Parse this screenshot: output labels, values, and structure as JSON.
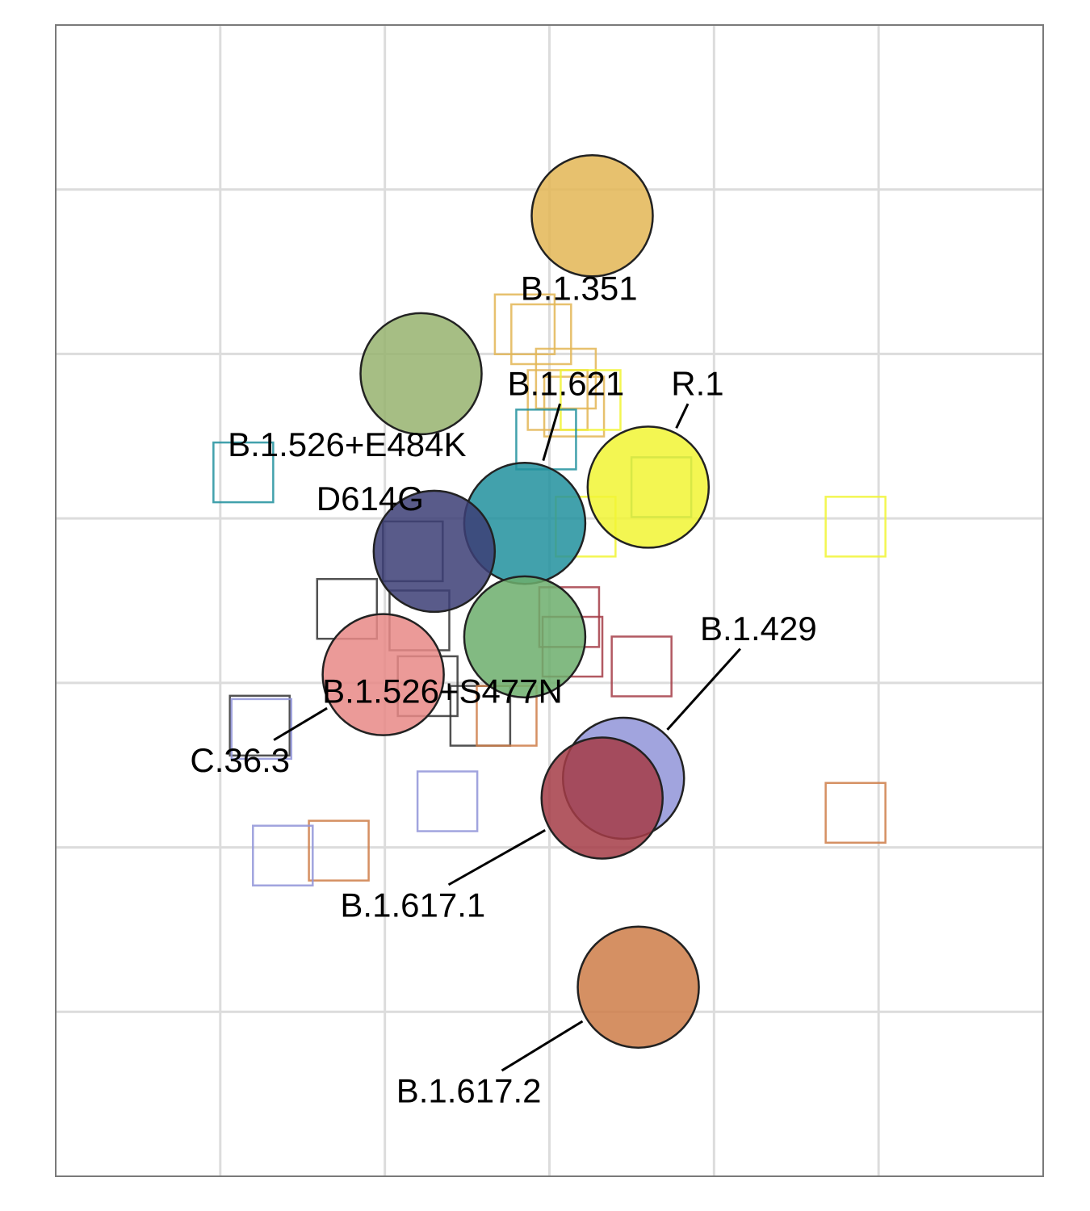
{
  "chart_data": {
    "type": "scatter",
    "title": "",
    "xlabel": "",
    "ylabel": "",
    "xlim": [
      0,
      6
    ],
    "ylim": [
      0,
      7
    ],
    "grid": true,
    "legend": "none",
    "antigens": [
      {
        "name": "B.1.351",
        "x": 3.26,
        "y": 5.84,
        "color": "#E3B655",
        "label_x": 3.18,
        "label_y": 5.4
      },
      {
        "name": "B.1.526+E484K",
        "x": 2.22,
        "y": 4.88,
        "color": "#96B36E",
        "label_x": 1.77,
        "label_y": 4.45
      },
      {
        "name": "B.1.621",
        "x": 2.85,
        "y": 3.97,
        "color": "#21909E",
        "label_x": 3.1,
        "label_y": 4.82
      },
      {
        "name": "R.1",
        "x": 3.6,
        "y": 4.19,
        "color": "#F1F534",
        "label_x": 3.9,
        "label_y": 4.82
      },
      {
        "name": "D614G",
        "x": 2.3,
        "y": 3.8,
        "color": "#3C3E76",
        "label_x": 1.91,
        "label_y": 4.12
      },
      {
        "name": "B.1.526+S477N",
        "x": 2.85,
        "y": 3.28,
        "color": "#6CAE6C",
        "label_x": 2.35,
        "label_y": 2.95
      },
      {
        "name": "C.36.3",
        "x": 1.99,
        "y": 3.05,
        "color": "#E88886",
        "label_x": 1.12,
        "label_y": 2.53
      },
      {
        "name": "B.1.429",
        "x": 3.45,
        "y": 2.42,
        "color": "#9194D8",
        "label_x": 4.27,
        "label_y": 3.33
      },
      {
        "name": "B.1.617.1",
        "x": 3.32,
        "y": 2.3,
        "color": "#A43C47",
        "label_x": 2.17,
        "label_y": 1.65
      },
      {
        "name": "B.1.617.2",
        "x": 3.54,
        "y": 1.15,
        "color": "#CE7D48",
        "label_x": 2.51,
        "label_y": 0.52
      }
    ],
    "sera": [
      {
        "x": 2.85,
        "y": 5.18,
        "color": "#E3B655"
      },
      {
        "x": 2.95,
        "y": 5.12,
        "color": "#E3B655"
      },
      {
        "x": 3.05,
        "y": 4.72,
        "color": "#E3B655"
      },
      {
        "x": 3.15,
        "y": 4.68,
        "color": "#E3B655"
      },
      {
        "x": 3.1,
        "y": 4.85,
        "color": "#E3B655"
      },
      {
        "x": 3.25,
        "y": 4.72,
        "color": "#F1F534"
      },
      {
        "x": 3.22,
        "y": 3.95,
        "color": "#F1F534"
      },
      {
        "x": 4.86,
        "y": 3.95,
        "color": "#F1F534"
      },
      {
        "x": 3.68,
        "y": 4.19,
        "color": "#21909E"
      },
      {
        "x": 2.98,
        "y": 4.48,
        "color": "#21909E"
      },
      {
        "x": 1.14,
        "y": 4.28,
        "color": "#21909E"
      },
      {
        "x": 2.17,
        "y": 3.8,
        "color": "#333333"
      },
      {
        "x": 1.77,
        "y": 3.45,
        "color": "#333333"
      },
      {
        "x": 2.21,
        "y": 3.38,
        "color": "#333333"
      },
      {
        "x": 2.26,
        "y": 2.98,
        "color": "#333333"
      },
      {
        "x": 2.58,
        "y": 2.8,
        "color": "#333333"
      },
      {
        "x": 1.24,
        "y": 2.74,
        "color": "#333333"
      },
      {
        "x": 3.12,
        "y": 3.4,
        "color": "#A43C47"
      },
      {
        "x": 3.14,
        "y": 3.22,
        "color": "#A43C47"
      },
      {
        "x": 3.56,
        "y": 3.1,
        "color": "#A43C47"
      },
      {
        "x": 2.74,
        "y": 2.8,
        "color": "#CE7D48"
      },
      {
        "x": 1.72,
        "y": 1.98,
        "color": "#CE7D48"
      },
      {
        "x": 4.86,
        "y": 2.21,
        "color": "#CE7D48"
      },
      {
        "x": 1.38,
        "y": 1.95,
        "color": "#9194D8"
      },
      {
        "x": 1.25,
        "y": 2.72,
        "color": "#9194D8"
      },
      {
        "x": 2.38,
        "y": 2.28,
        "color": "#9194D8"
      }
    ]
  }
}
